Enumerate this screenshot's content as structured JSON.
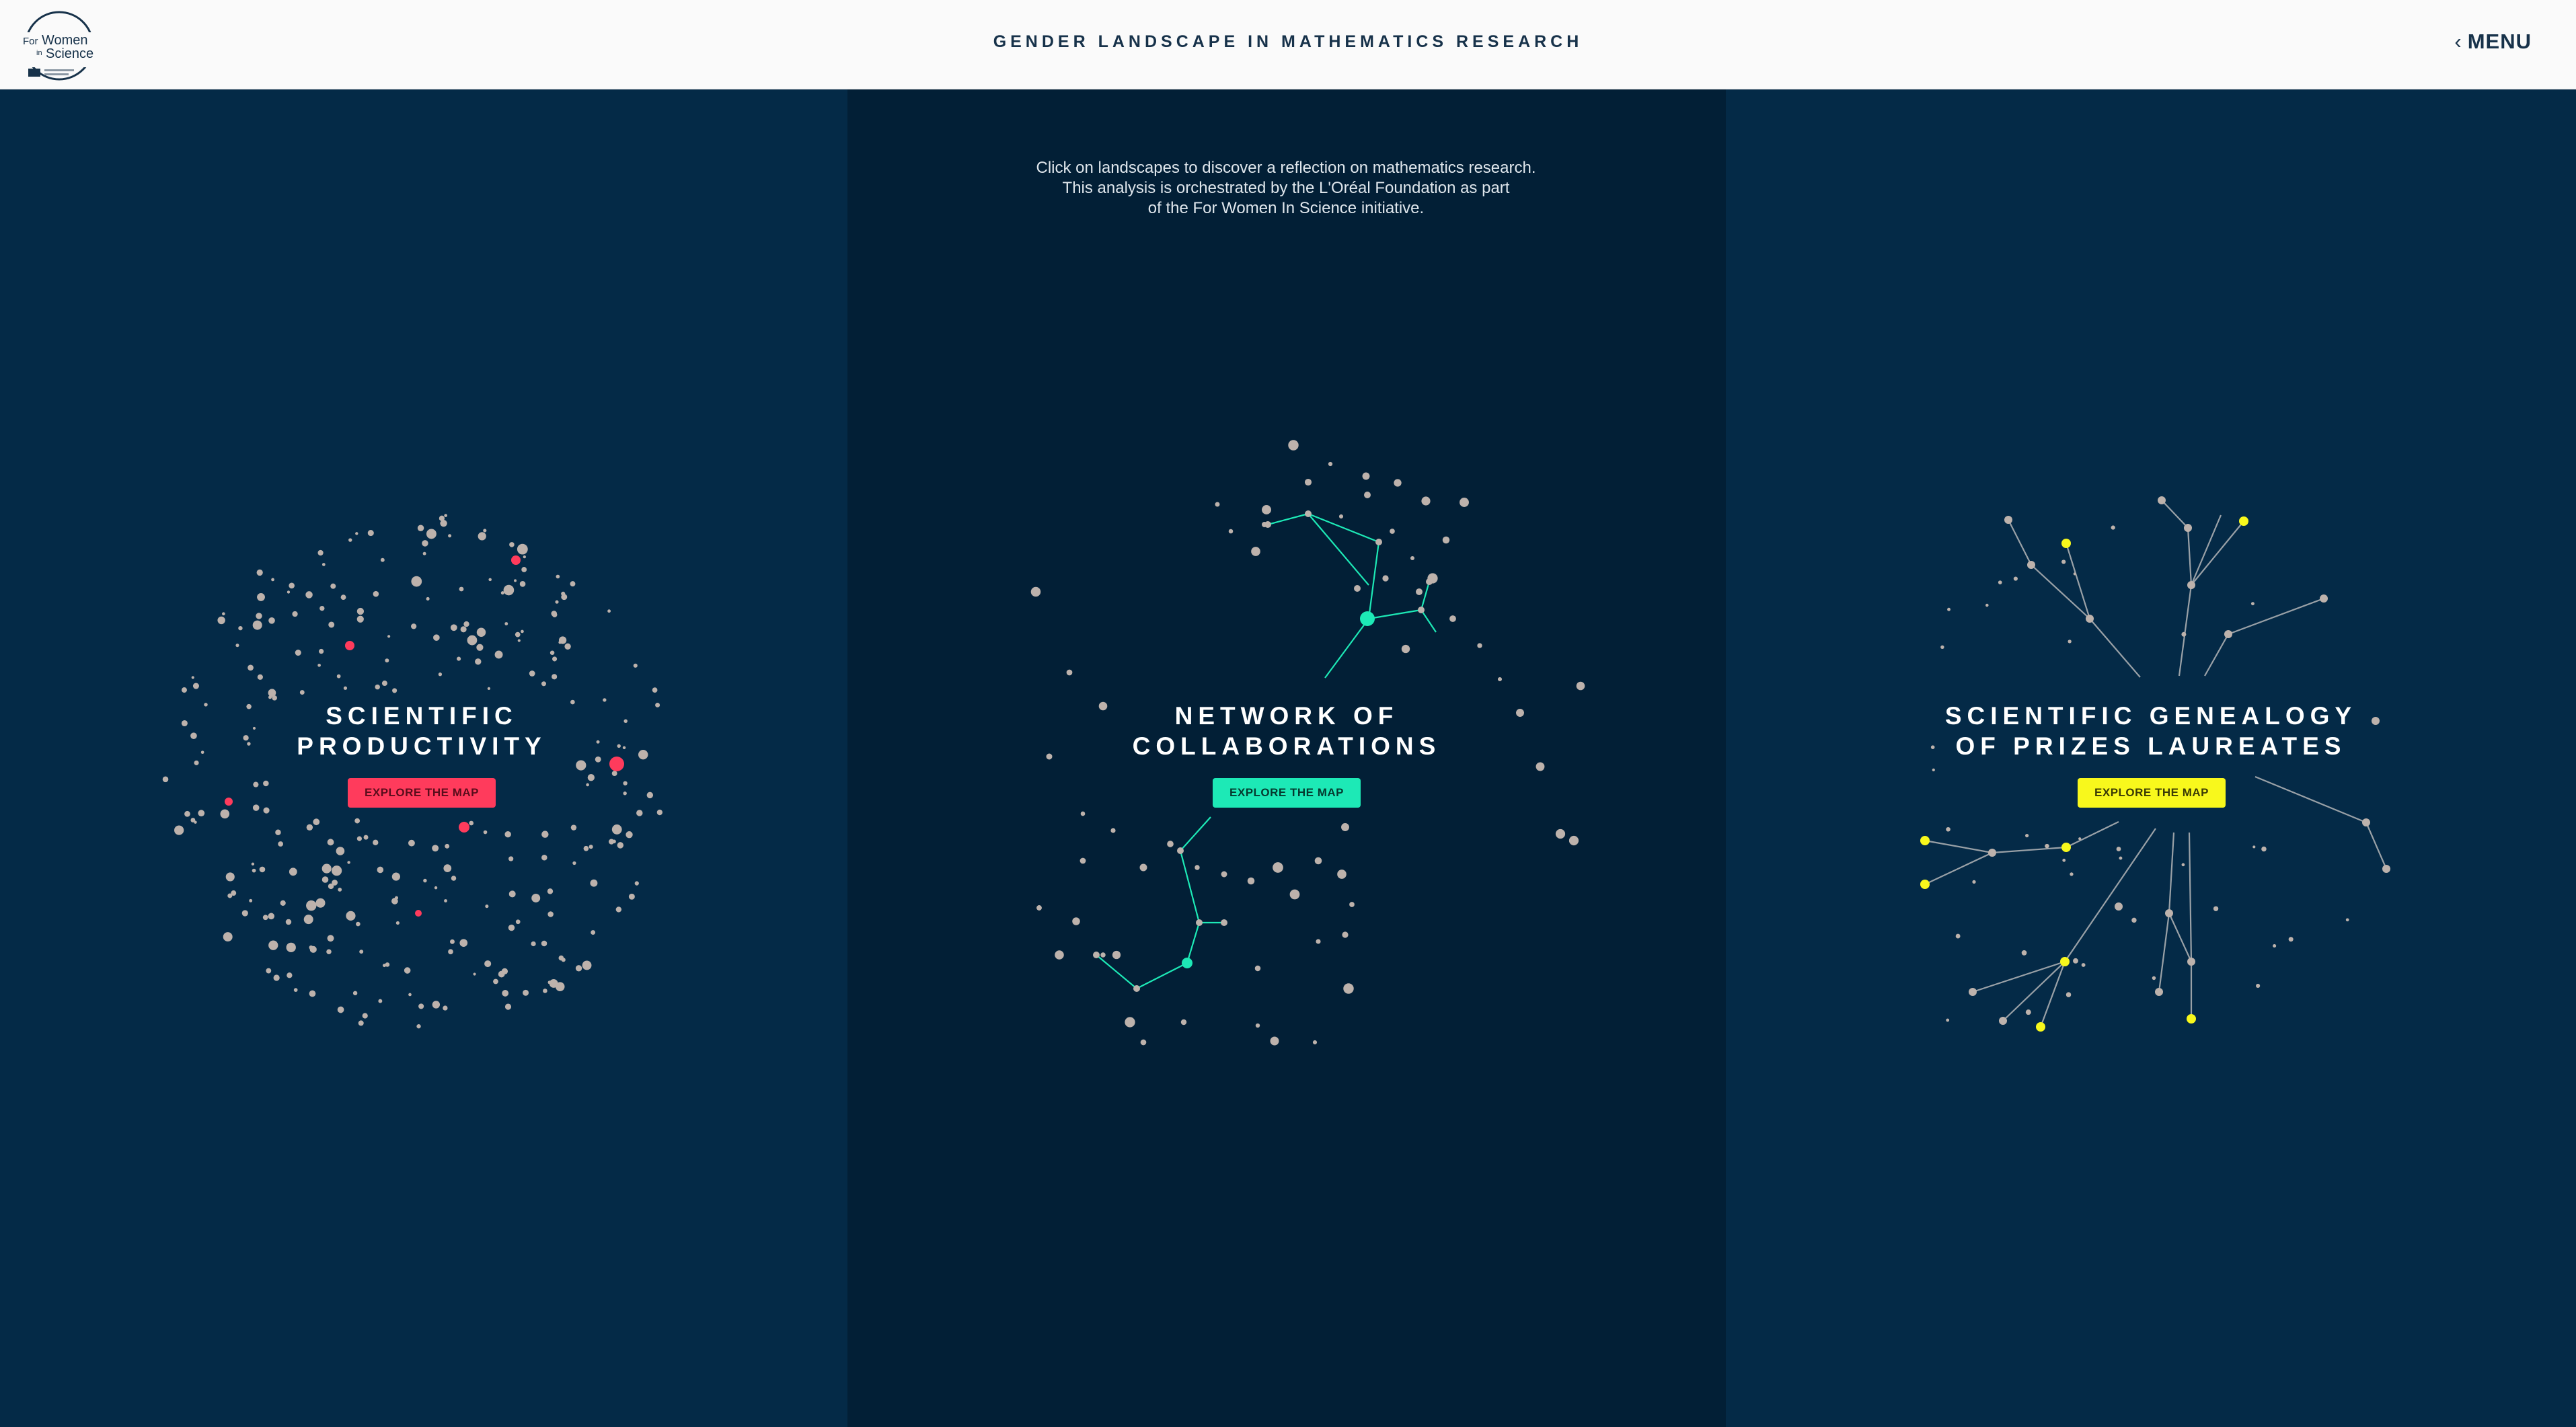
{
  "header": {
    "title": "GENDER LANDSCAPE IN MATHEMATICS RESEARCH",
    "menu_label": "MENU",
    "menu_icon": "chevron-left-icon",
    "logo": {
      "line1": "For Women",
      "line2": "in Science"
    }
  },
  "intro": {
    "lines": [
      "Click on landscapes to discover a reflection on mathematics research.",
      "This analysis is orchestrated by the L'Oréal Foundation as part",
      "of the For Women In Science initiative."
    ]
  },
  "panels": [
    {
      "title_lines": [
        "SCIENTIFIC",
        "PRODUCTIVITY"
      ],
      "button_label": "EXPLORE THE MAP",
      "accent": "#ff3b5c",
      "button_text_color": "#5a0d1c",
      "background": "#042a47"
    },
    {
      "title_lines": [
        "NETWORK OF",
        "COLLABORATIONS"
      ],
      "button_label": "EXPLORE THE MAP",
      "accent": "#1de9b6",
      "button_text_color": "#053a2f",
      "background": "#021f36"
    },
    {
      "title_lines": [
        "SCIENTIFIC GENEALOGY",
        "OF PRIZES LAUREATES"
      ],
      "button_label": "EXPLORE THE MAP",
      "accent": "#f8f81c",
      "button_text_color": "#3b3b06",
      "background": "#042a47"
    }
  ],
  "colors": {
    "node": "#bdb2ac",
    "header_bg": "#fafafa",
    "header_text": "#17324a"
  }
}
